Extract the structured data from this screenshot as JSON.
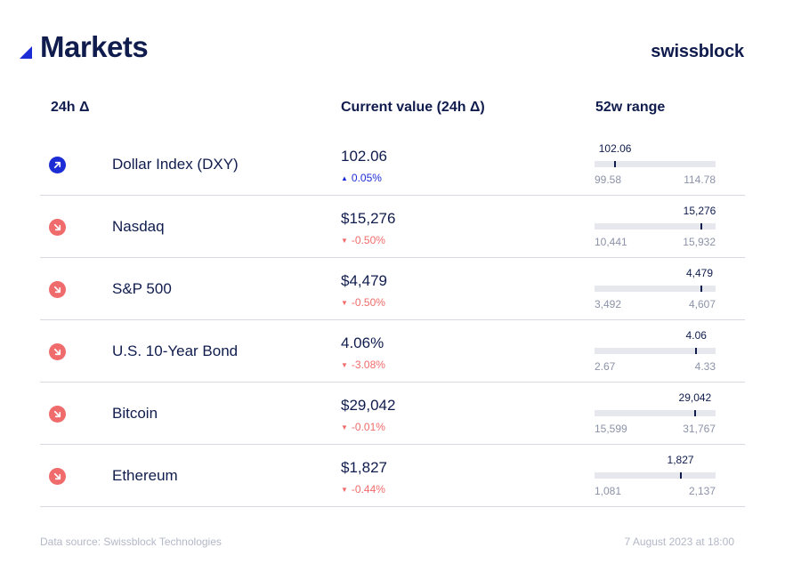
{
  "header": {
    "title": "Markets",
    "brand": "swissblock"
  },
  "columns": {
    "delta": "24h Δ",
    "current": "Current value (24h Δ)",
    "range": "52w range"
  },
  "markets": [
    {
      "name": "Dollar Index (DXY)",
      "value": "102.06",
      "direction": "up",
      "change": "0.05%",
      "range_current": "102.06",
      "range_low": "99.58",
      "range_high": "114.78",
      "range_position": 0.17,
      "icon": "arrow-up-right-icon"
    },
    {
      "name": "Nasdaq",
      "value": "$15,276",
      "direction": "down",
      "change": "-0.50%",
      "range_current": "15,276",
      "range_low": "10,441",
      "range_high": "15,932",
      "range_position": 0.88,
      "icon": "arrow-down-right-icon"
    },
    {
      "name": "S&P 500",
      "value": "$4,479",
      "direction": "down",
      "change": "-0.50%",
      "range_current": "4,479",
      "range_low": "3,492",
      "range_high": "4,607",
      "range_position": 0.88,
      "icon": "arrow-down-right-icon"
    },
    {
      "name": "U.S. 10-Year Bond",
      "value": "4.06%",
      "direction": "down",
      "change": "-3.08%",
      "range_current": "4.06",
      "range_low": "2.67",
      "range_high": "4.33",
      "range_position": 0.84,
      "icon": "arrow-down-right-icon"
    },
    {
      "name": "Bitcoin",
      "value": "$29,042",
      "direction": "down",
      "change": "-0.01%",
      "range_current": "29,042",
      "range_low": "15,599",
      "range_high": "31,767",
      "range_position": 0.83,
      "icon": "arrow-down-right-icon"
    },
    {
      "name": "Ethereum",
      "value": "$1,827",
      "direction": "down",
      "change": "-0.44%",
      "range_current": "1,827",
      "range_low": "1,081",
      "range_high": "2,137",
      "range_position": 0.71,
      "icon": "arrow-down-right-icon"
    }
  ],
  "footer": {
    "source": "Data source: Swissblock Technologies",
    "timestamp": "7 August 2023 at 18:00"
  },
  "colors": {
    "navy": "#0f1c4d",
    "up": "#1c2dd6",
    "down": "#f06b6b",
    "bar": "#e6e8ee"
  }
}
